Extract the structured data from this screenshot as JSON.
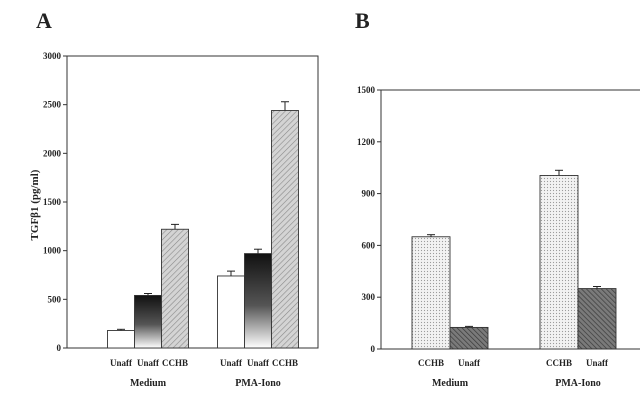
{
  "chart_data": [
    {
      "panel": "A",
      "type": "bar",
      "ylabel": "TGFβ1 (pg/ml)",
      "ylim": [
        0,
        3000
      ],
      "yticks": [
        0,
        500,
        1000,
        1500,
        2000,
        2500,
        3000
      ],
      "groups": [
        {
          "label": "Medium",
          "bars": [
            {
              "label": "Unaff",
              "value": 180,
              "error": 12,
              "pattern": "white"
            },
            {
              "label": "Unaff",
              "value": 540,
              "error": 20,
              "pattern": "gradient"
            },
            {
              "label": "CCHB",
              "value": 1220,
              "error": 50,
              "pattern": "hatch"
            }
          ]
        },
        {
          "label": "PMA-Iono",
          "bars": [
            {
              "label": "Unaff",
              "value": 740,
              "error": 50,
              "pattern": "white"
            },
            {
              "label": "Unaff",
              "value": 970,
              "error": 45,
              "pattern": "gradient"
            },
            {
              "label": "CCHB",
              "value": 2440,
              "error": 90,
              "pattern": "hatch"
            }
          ]
        }
      ]
    },
    {
      "panel": "B",
      "type": "bar",
      "ylabel": "",
      "ylim": [
        0,
        1500
      ],
      "yticks": [
        0,
        300,
        600,
        900,
        1200,
        1500
      ],
      "groups": [
        {
          "label": "Medium",
          "bars": [
            {
              "label": "CCHB",
              "value": 650,
              "error": 12,
              "pattern": "dots"
            },
            {
              "label": "Unaff",
              "value": 125,
              "error": 6,
              "pattern": "darkhatch"
            }
          ]
        },
        {
          "label": "PMA-Iono",
          "bars": [
            {
              "label": "CCHB",
              "value": 1005,
              "error": 30,
              "pattern": "dots"
            },
            {
              "label": "Unaff",
              "value": 350,
              "error": 12,
              "pattern": "darkhatch"
            }
          ]
        }
      ]
    }
  ]
}
